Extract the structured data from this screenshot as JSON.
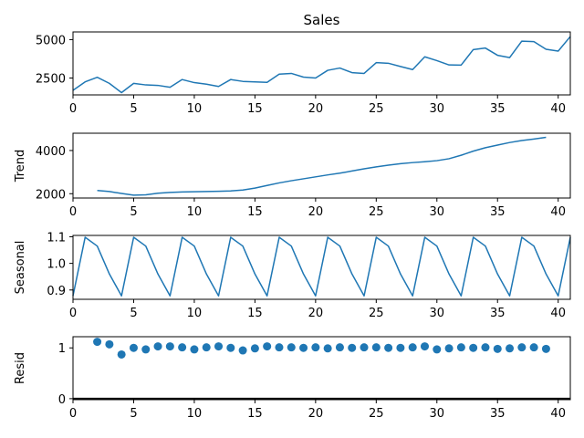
{
  "colors": {
    "series": "#1f77b4",
    "axes": "#000000",
    "background": "#ffffff"
  },
  "chart_data": [
    {
      "type": "line",
      "title": "Sales",
      "ylabel": "",
      "xlabel": "",
      "xlim": [
        0,
        41
      ],
      "ylim": [
        1400,
        5500
      ],
      "xticks": [
        0,
        5,
        10,
        15,
        20,
        25,
        30,
        35,
        40
      ],
      "yticks": [
        2500,
        5000
      ],
      "x": [
        0,
        1,
        2,
        3,
        4,
        5,
        6,
        7,
        8,
        9,
        10,
        11,
        12,
        13,
        14,
        15,
        16,
        17,
        18,
        19,
        20,
        21,
        22,
        23,
        24,
        25,
        26,
        27,
        28,
        29,
        30,
        31,
        32,
        33,
        34,
        35,
        36,
        37,
        38,
        39,
        40,
        41
      ],
      "values": [
        1700,
        2250,
        2550,
        2150,
        1550,
        2150,
        2050,
        2020,
        1900,
        2400,
        2200,
        2100,
        1950,
        2400,
        2280,
        2250,
        2220,
        2750,
        2800,
        2560,
        2500,
        3000,
        3150,
        2850,
        2800,
        3500,
        3460,
        3250,
        3050,
        3880,
        3630,
        3350,
        3340,
        4350,
        4450,
        3980,
        3830,
        4900,
        4870,
        4370,
        4250,
        5200
      ],
      "grid": false
    },
    {
      "type": "line",
      "title": "",
      "ylabel": "Trend",
      "xlabel": "",
      "xlim": [
        0,
        41
      ],
      "ylim": [
        1800,
        4800
      ],
      "xticks": [
        0,
        5,
        10,
        15,
        20,
        25,
        30,
        35,
        40
      ],
      "yticks": [
        2000,
        4000
      ],
      "x": [
        2,
        3,
        4,
        5,
        6,
        7,
        8,
        9,
        10,
        11,
        12,
        13,
        14,
        15,
        16,
        17,
        18,
        19,
        20,
        21,
        22,
        23,
        24,
        25,
        26,
        27,
        28,
        29,
        30,
        31,
        32,
        33,
        34,
        35,
        36,
        37,
        38,
        39
      ],
      "values": [
        2150,
        2100,
        2010,
        1930,
        1950,
        2020,
        2060,
        2080,
        2090,
        2100,
        2110,
        2130,
        2170,
        2260,
        2380,
        2500,
        2600,
        2690,
        2780,
        2870,
        2950,
        3050,
        3150,
        3240,
        3320,
        3390,
        3440,
        3480,
        3530,
        3620,
        3780,
        3970,
        4130,
        4250,
        4370,
        4460,
        4530,
        4610
      ],
      "grid": false
    },
    {
      "type": "line",
      "title": "",
      "ylabel": "Seasonal",
      "xlabel": "",
      "xlim": [
        0,
        41
      ],
      "ylim": [
        0.865,
        1.105
      ],
      "xticks": [
        0,
        5,
        10,
        15,
        20,
        25,
        30,
        35,
        40
      ],
      "yticks": [
        0.9,
        1.0,
        1.1
      ],
      "ytick_labels": [
        "0.9",
        "1.0",
        "1.1"
      ],
      "x": [
        0,
        1,
        2,
        3,
        4,
        5,
        6,
        7,
        8,
        9,
        10,
        11,
        12,
        13,
        14,
        15,
        16,
        17,
        18,
        19,
        20,
        21,
        22,
        23,
        24,
        25,
        26,
        27,
        28,
        29,
        30,
        31,
        32,
        33,
        34,
        35,
        36,
        37,
        38,
        39,
        40,
        41
      ],
      "values": [
        0.878,
        1.098,
        1.065,
        0.96,
        0.878,
        1.098,
        1.065,
        0.96,
        0.878,
        1.098,
        1.065,
        0.96,
        0.878,
        1.098,
        1.065,
        0.96,
        0.878,
        1.098,
        1.065,
        0.96,
        0.878,
        1.098,
        1.065,
        0.96,
        0.878,
        1.098,
        1.065,
        0.96,
        0.878,
        1.098,
        1.065,
        0.96,
        0.878,
        1.098,
        1.065,
        0.96,
        0.878,
        1.098,
        1.065,
        0.96,
        0.878,
        1.098
      ],
      "grid": false
    },
    {
      "type": "scatter",
      "title": "",
      "ylabel": "Resid",
      "xlabel": "",
      "xlim": [
        0,
        41
      ],
      "ylim": [
        -0.02,
        1.22
      ],
      "xticks": [
        0,
        5,
        10,
        15,
        20,
        25,
        30,
        35,
        40
      ],
      "yticks": [
        0,
        1
      ],
      "baseline": 0,
      "x": [
        2,
        3,
        4,
        5,
        6,
        7,
        8,
        9,
        10,
        11,
        12,
        13,
        14,
        15,
        16,
        17,
        18,
        19,
        20,
        21,
        22,
        23,
        24,
        25,
        26,
        27,
        28,
        29,
        30,
        31,
        32,
        33,
        34,
        35,
        36,
        37,
        38,
        39
      ],
      "values": [
        1.12,
        1.07,
        0.87,
        1.0,
        0.97,
        1.03,
        1.03,
        1.01,
        0.97,
        1.01,
        1.03,
        1.0,
        0.95,
        0.99,
        1.03,
        1.01,
        1.01,
        1.0,
        1.01,
        0.99,
        1.01,
        1.0,
        1.01,
        1.01,
        1.0,
        1.0,
        1.01,
        1.03,
        0.97,
        0.99,
        1.01,
        1.0,
        1.01,
        0.98,
        0.99,
        1.01,
        1.01,
        0.98
      ],
      "grid": false
    }
  ]
}
